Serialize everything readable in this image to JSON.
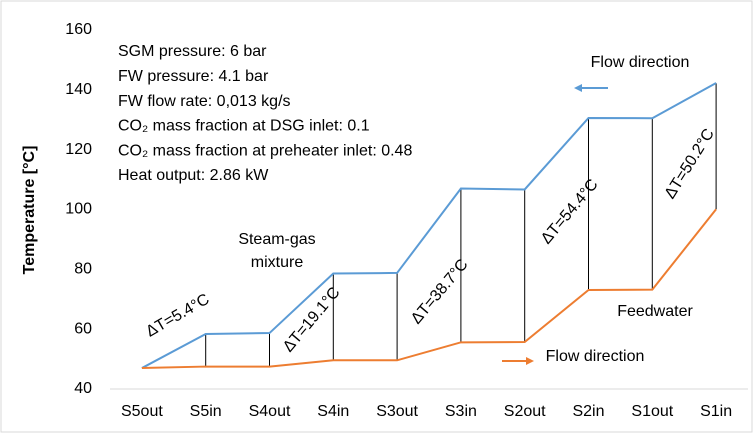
{
  "chart_data": {
    "type": "line",
    "ylabel": "Temperature [°C]",
    "categories": [
      "S5out",
      "S5in",
      "S4out",
      "S4in",
      "S3out",
      "S3in",
      "S2out",
      "S2in",
      "S1out",
      "S1in"
    ],
    "series": [
      {
        "name": "Steam-gas mixture",
        "color": "#5b9bd5",
        "values": [
          47,
          58.4,
          58.7,
          78.6,
          78.8,
          107,
          106.7,
          130.6,
          130.5,
          142.3
        ]
      },
      {
        "name": "Feedwater",
        "color": "#ed7d31",
        "values": [
          47,
          47.5,
          47.5,
          49.6,
          49.6,
          55.6,
          55.7,
          73.1,
          73.2,
          100.1
        ]
      }
    ],
    "ylim": [
      40,
      160
    ],
    "yticks": [
      40,
      60,
      80,
      100,
      120,
      140,
      160
    ],
    "grid": false,
    "info_lines": [
      "SGM pressure: 6 bar",
      "FW pressure: 4.1 bar",
      "FW flow rate: 0,013 kg/s",
      "CO₂ mass fraction at DSG inlet: 0.1",
      "CO₂ mass fraction at preheater inlet: 0.48",
      "Heat output: 2.86 kW"
    ],
    "annotations": [
      "ΔT=5.4°C",
      "ΔT=19.1°C",
      "ΔT=38.7°C",
      "ΔT=54.4°C",
      "ΔT=50.2°C",
      "Steam-gas",
      "mixture",
      "Feedwater",
      "Flow direction",
      "Flow direction"
    ]
  }
}
